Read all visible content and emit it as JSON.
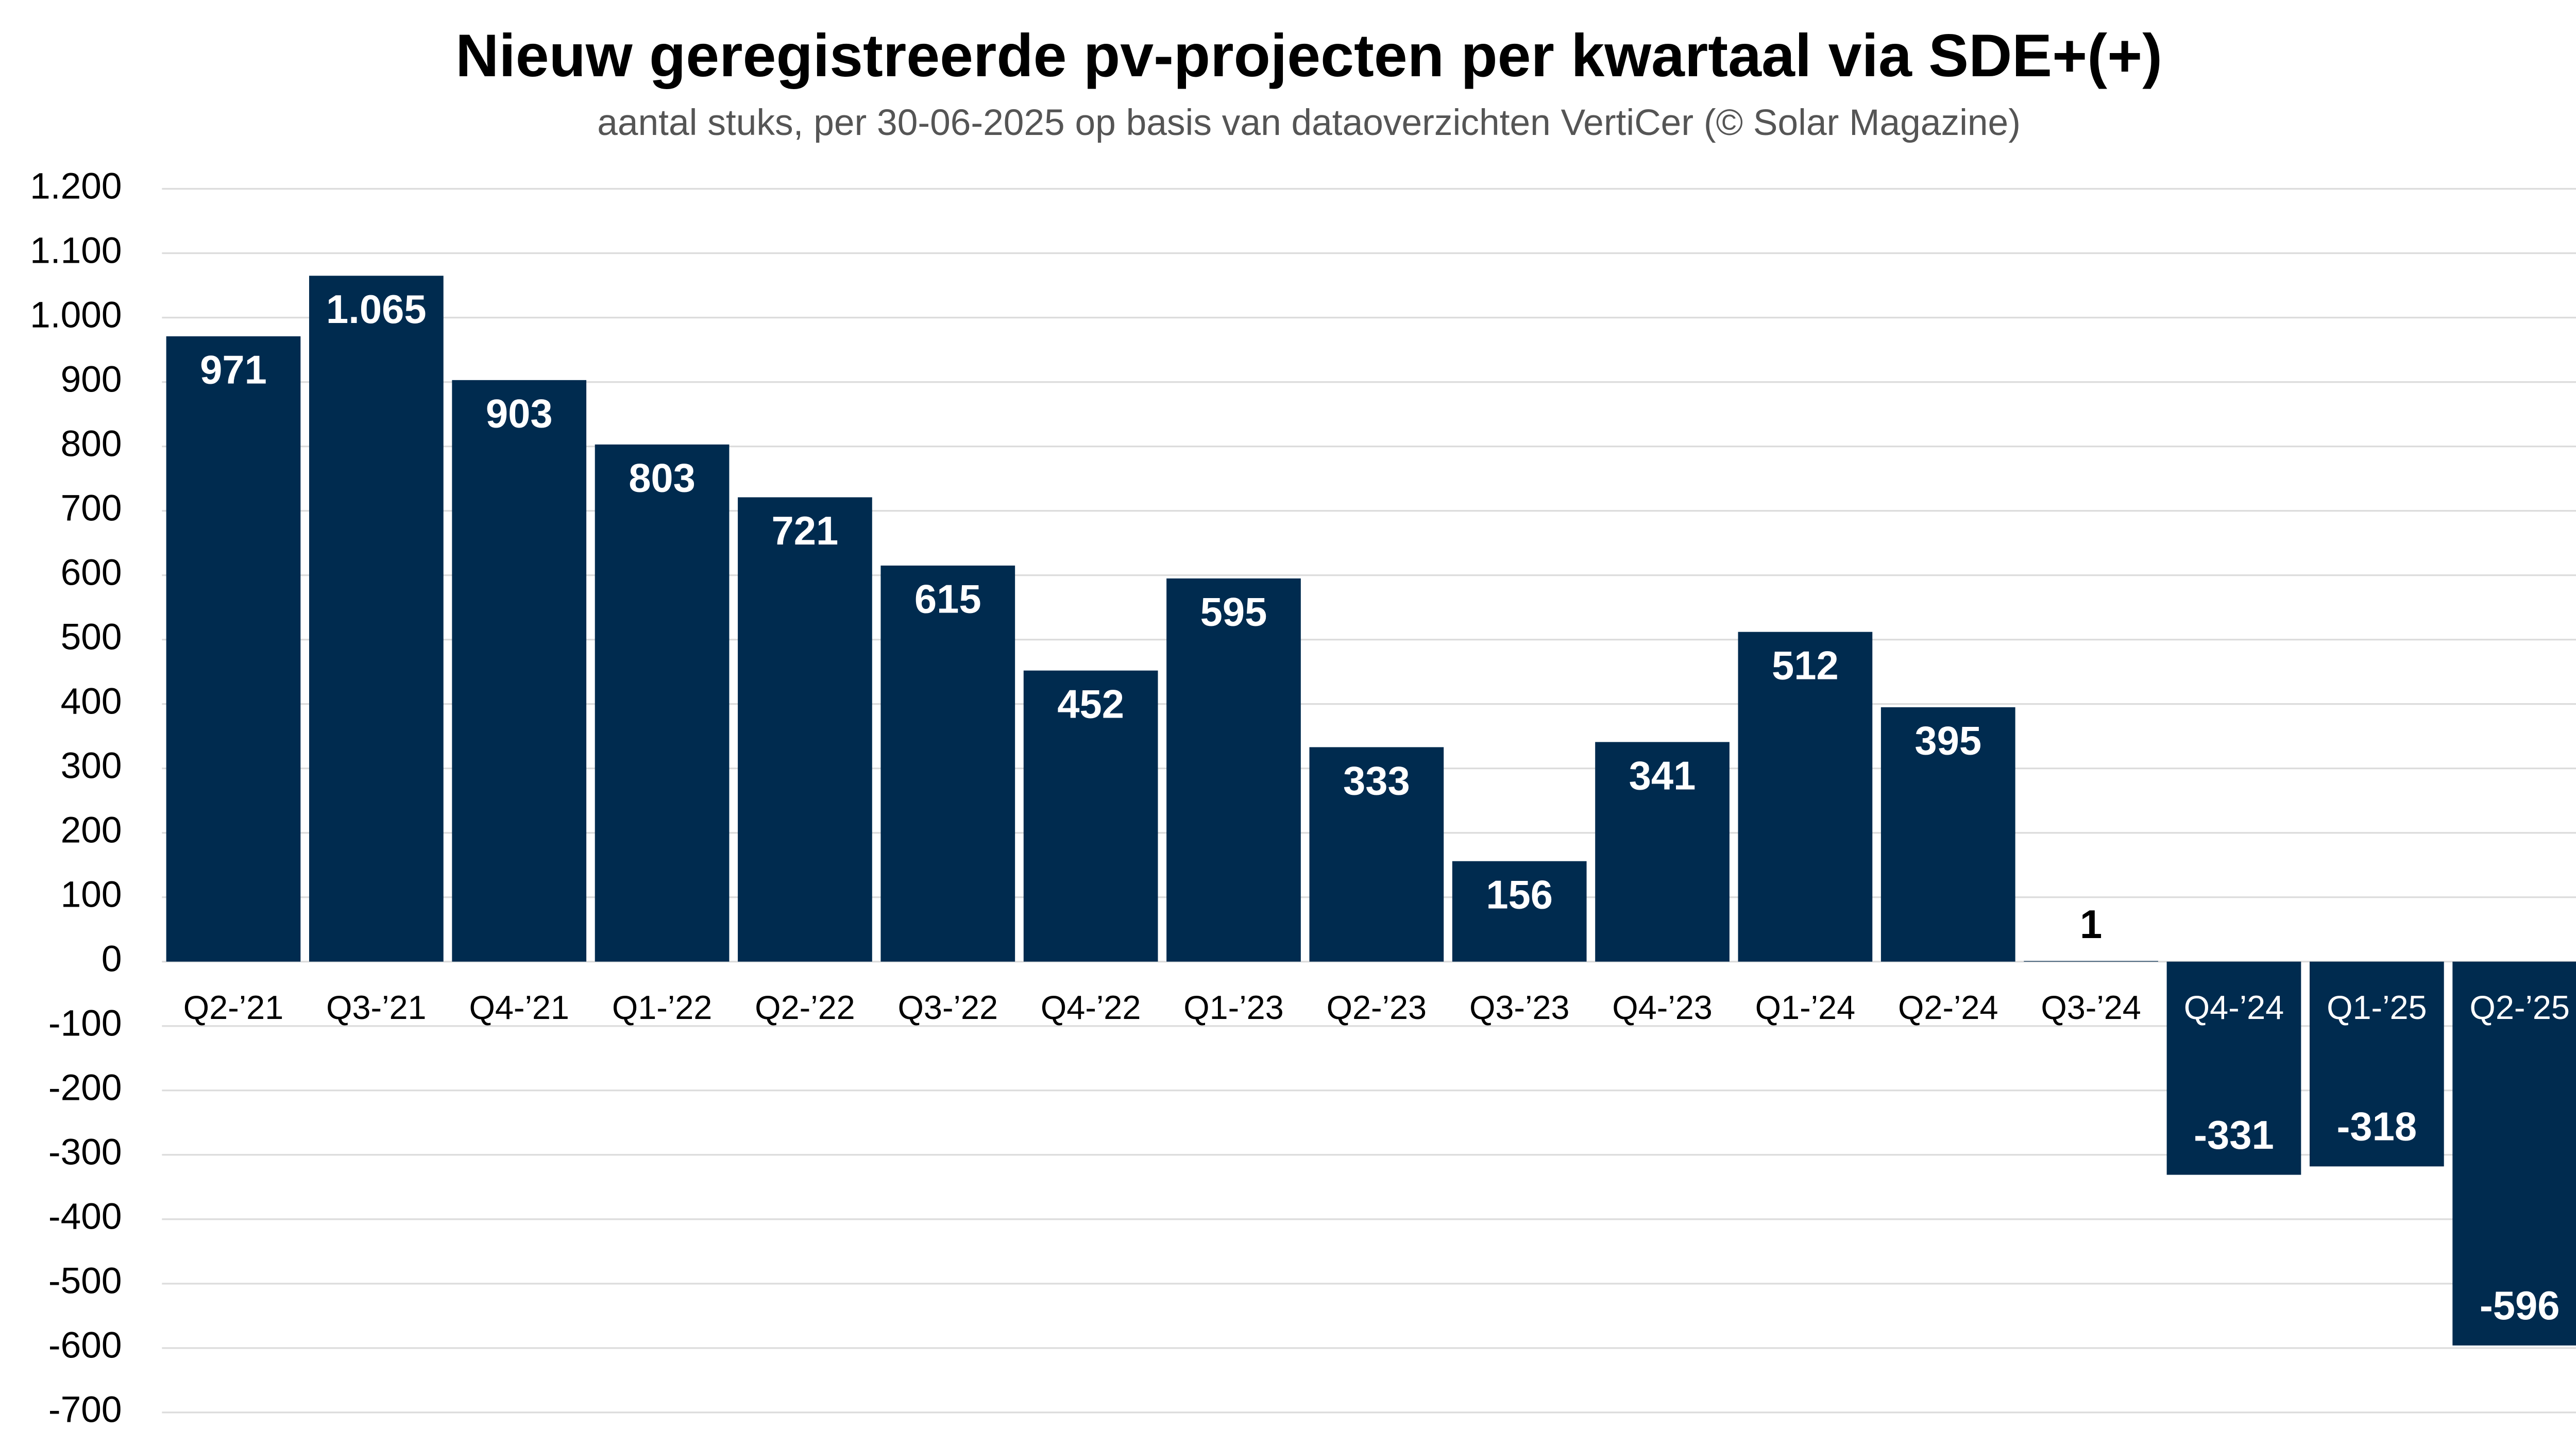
{
  "chart_data": {
    "type": "bar",
    "title": "Nieuw geregistreerde pv-projecten per kwartaal via SDE+(+)",
    "subtitle": "aantal stuks, per 30-06-2025 op basis van dataoverzichten VertiCer (© Solar Magazine)",
    "categories": [
      "Q2-’21",
      "Q3-’21",
      "Q4-’21",
      "Q1-’22",
      "Q2-’22",
      "Q3-’22",
      "Q4-’22",
      "Q1-’23",
      "Q2-’23",
      "Q3-’23",
      "Q4-’23",
      "Q1-’24",
      "Q2-’24",
      "Q3-’24",
      "Q4-’24",
      "Q1-’25",
      "Q2-’25"
    ],
    "values": [
      971,
      1065,
      903,
      803,
      721,
      615,
      452,
      595,
      333,
      156,
      341,
      512,
      395,
      1,
      -331,
      -318,
      -596
    ],
    "value_labels": [
      "971",
      "1.065",
      "903",
      "803",
      "721",
      "615",
      "452",
      "595",
      "333",
      "156",
      "341",
      "512",
      "395",
      "1",
      "-331",
      "-318",
      "-596"
    ],
    "color": "#002b4f",
    "ylim": [
      -700,
      1200
    ],
    "yticks": [
      {
        "value": 1200,
        "label": "1.200"
      },
      {
        "value": 1100,
        "label": "1.100"
      },
      {
        "value": 1000,
        "label": "1.000"
      },
      900,
      800,
      700,
      600,
      500,
      400,
      300,
      200,
      100,
      0,
      -100,
      -200,
      -300,
      -400,
      -500,
      -600,
      -700
    ],
    "grid": true
  }
}
